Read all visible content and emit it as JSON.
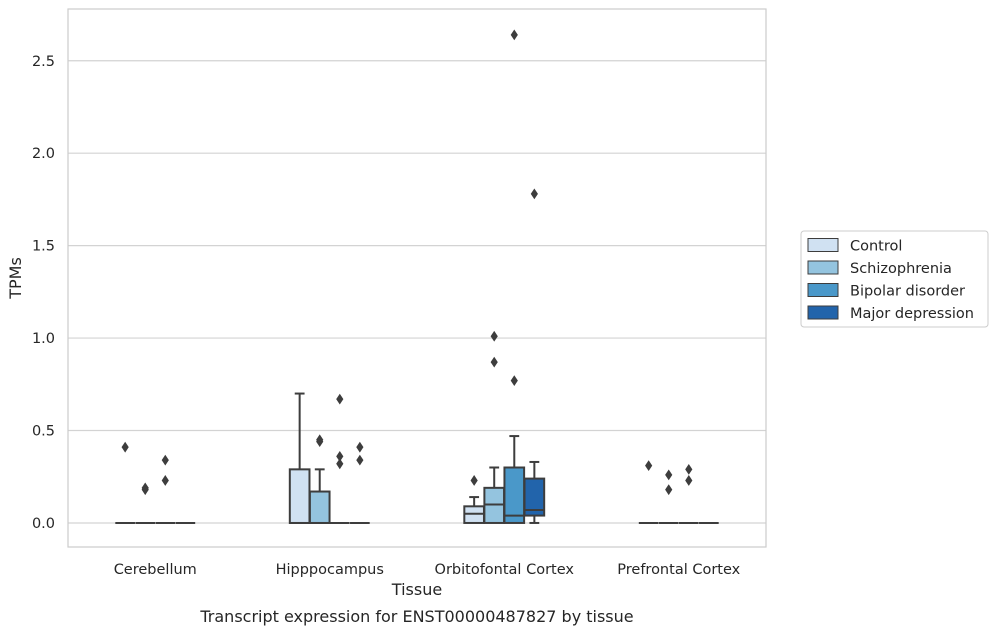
{
  "chart_data": {
    "type": "box",
    "title": "Transcript expression for ENST00000487827 by tissue",
    "xlabel": "Tissue",
    "ylabel": "TPMs",
    "ylim": [
      -0.13,
      2.78
    ],
    "yticks": [
      "0.0",
      "0.5",
      "1.0",
      "1.5",
      "2.0",
      "2.5"
    ],
    "grid": "horizontal",
    "legend_position": "right",
    "categories": [
      "Cerebellum",
      "Hipppocampus",
      "Orbitofontal Cortex",
      "Prefrontal Cortex"
    ],
    "series": [
      {
        "name": "Control",
        "color": "#d0e1f2",
        "boxes": [
          {
            "q1": 0,
            "median": 0,
            "q3": 0,
            "whislo": 0,
            "whishi": 0,
            "fliers": [
              0.41
            ]
          },
          {
            "q1": 0,
            "median": 0,
            "q3": 0.29,
            "whislo": 0,
            "whishi": 0.7,
            "fliers": []
          },
          {
            "q1": 0,
            "median": 0.05,
            "q3": 0.09,
            "whislo": 0,
            "whishi": 0.14,
            "fliers": [
              0.23
            ]
          },
          {
            "q1": 0,
            "median": 0,
            "q3": 0,
            "whislo": 0,
            "whishi": 0,
            "fliers": [
              0.31
            ]
          }
        ]
      },
      {
        "name": "Schizophrenia",
        "color": "#94c4df",
        "boxes": [
          {
            "q1": 0,
            "median": 0,
            "q3": 0,
            "whislo": 0,
            "whishi": 0,
            "fliers": [
              0.18,
              0.19
            ]
          },
          {
            "q1": 0,
            "median": 0,
            "q3": 0.17,
            "whislo": 0,
            "whishi": 0.29,
            "fliers": [
              0.44,
              0.45
            ]
          },
          {
            "q1": 0,
            "median": 0.1,
            "q3": 0.19,
            "whislo": 0,
            "whishi": 0.3,
            "fliers": [
              0.87,
              1.01
            ]
          },
          {
            "q1": 0,
            "median": 0,
            "q3": 0,
            "whislo": 0,
            "whishi": 0,
            "fliers": [
              0.18,
              0.26
            ]
          }
        ]
      },
      {
        "name": "Bipolar disorder",
        "color": "#4a98c9",
        "boxes": [
          {
            "q1": 0,
            "median": 0,
            "q3": 0,
            "whislo": 0,
            "whishi": 0,
            "fliers": [
              0.23,
              0.34
            ]
          },
          {
            "q1": 0,
            "median": 0,
            "q3": 0,
            "whislo": 0,
            "whishi": 0,
            "fliers": [
              0.32,
              0.36,
              0.67
            ]
          },
          {
            "q1": 0,
            "median": 0.04,
            "q3": 0.3,
            "whislo": 0,
            "whishi": 0.47,
            "fliers": [
              0.77,
              2.64
            ]
          },
          {
            "q1": 0,
            "median": 0,
            "q3": 0,
            "whislo": 0,
            "whishi": 0,
            "fliers": [
              0.23,
              0.29
            ]
          }
        ]
      },
      {
        "name": "Major depression",
        "color": "#2264ab",
        "boxes": [
          {
            "q1": 0,
            "median": 0,
            "q3": 0,
            "whislo": 0,
            "whishi": 0,
            "fliers": []
          },
          {
            "q1": 0,
            "median": 0,
            "q3": 0,
            "whislo": 0,
            "whishi": 0,
            "fliers": [
              0.34,
              0.41
            ]
          },
          {
            "q1": 0.04,
            "median": 0.07,
            "q3": 0.24,
            "whislo": 0,
            "whishi": 0.33,
            "fliers": [
              1.78
            ]
          },
          {
            "q1": 0,
            "median": 0,
            "q3": 0,
            "whislo": 0,
            "whishi": 0,
            "fliers": []
          }
        ]
      }
    ]
  }
}
